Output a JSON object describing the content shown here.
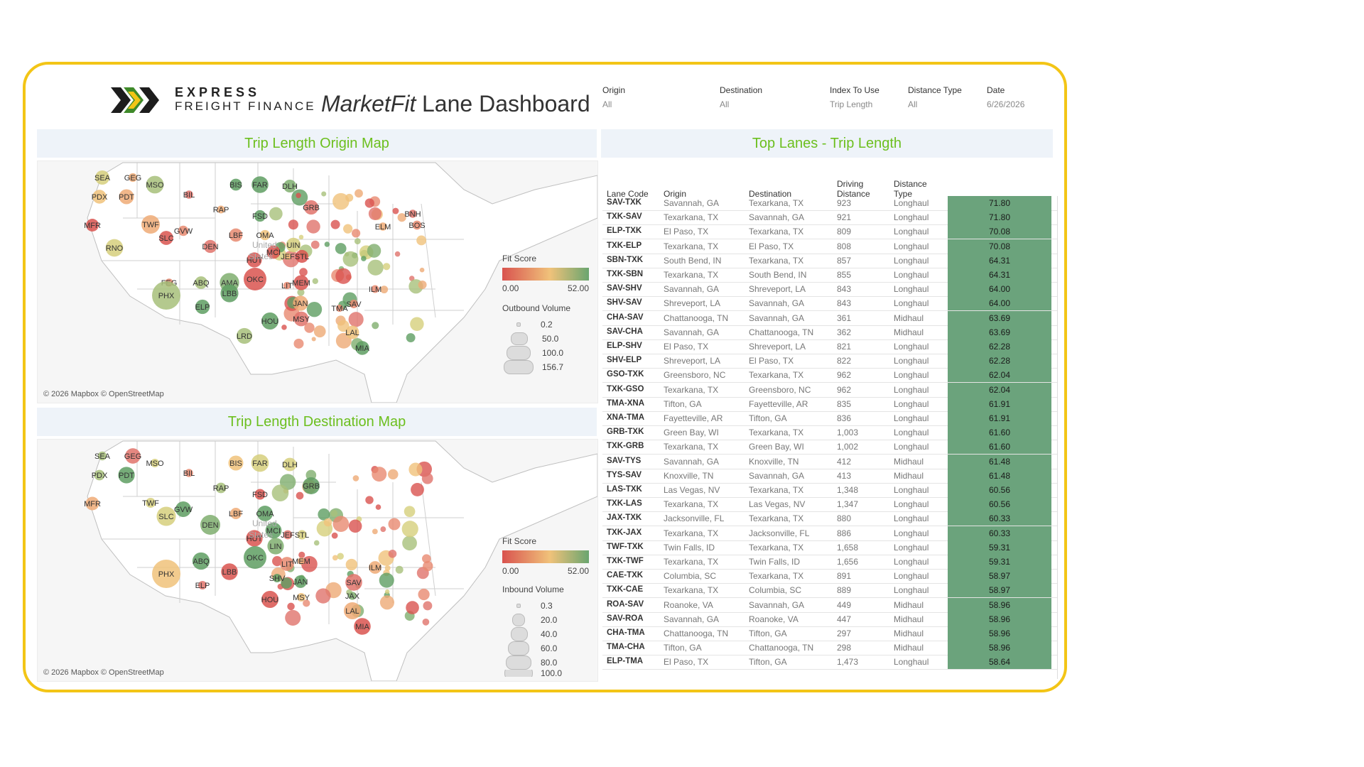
{
  "header": {
    "brand_line1": "EXPRESS",
    "brand_line2": "FREIGHT FINANCE",
    "title_italic": "MarketFit",
    "title_rest": "Lane Dashboard"
  },
  "filters": [
    {
      "label": "Origin",
      "value": "All"
    },
    {
      "label": "Destination",
      "value": "All"
    },
    {
      "label": "Index To Use",
      "value": "Trip Length"
    },
    {
      "label": "Distance Type",
      "value": "All"
    },
    {
      "label": "Date",
      "value": "6/26/2026"
    }
  ],
  "origin_map": {
    "title": "Trip Length Origin Map",
    "copyright": "© 2026 Mapbox © OpenStreetMap",
    "country_label_1": "United",
    "country_label_2": "States",
    "fit_legend": {
      "title": "Fit Score",
      "min": "0.00",
      "max": "52.00"
    },
    "volume_legend": {
      "title": "Outbound Volume",
      "values": [
        "0.2",
        "50.0",
        "100.0",
        "156.7"
      ]
    },
    "cities": [
      "SEA",
      "GEG",
      "MSO",
      "PDX",
      "PDT",
      "BIL",
      "BIS",
      "FAR",
      "DLH",
      "MFR",
      "TWF",
      "GVW",
      "RAP",
      "FSD",
      "RNO",
      "SLC",
      "DEN",
      "LBF",
      "OMA",
      "GRB",
      "UIN",
      "MCI",
      "JEF",
      "STL",
      "HUT",
      "FEG",
      "ABQ",
      "AMA",
      "OKC",
      "LBB",
      "PHX",
      "ELP",
      "LIT",
      "MEM",
      "JAN",
      "HOU",
      "MSY",
      "LRD",
      "TMA",
      "SAV",
      "ILM",
      "LAL",
      "MIA",
      "ELM",
      "BNH",
      "BOS"
    ]
  },
  "dest_map": {
    "title": "Trip Length Destination Map",
    "copyright": "© 2026 Mapbox © OpenStreetMap",
    "country_label_1": "United",
    "country_label_2": "States",
    "fit_legend": {
      "title": "Fit Score",
      "min": "0.00",
      "max": "52.00"
    },
    "volume_legend": {
      "title": "Inbound Volume",
      "values": [
        "0.3",
        "20.0",
        "40.0",
        "60.0",
        "80.0",
        "100.0"
      ]
    },
    "cities": [
      "SEA",
      "GEG",
      "MSO",
      "PDX",
      "PDT",
      "BIL",
      "BIS",
      "FAR",
      "DLH",
      "MFR",
      "TWF",
      "GVW",
      "RAP",
      "FSD",
      "SLC",
      "DEN",
      "LBF",
      "OMA",
      "GRB",
      "MCI",
      "JEF",
      "STL",
      "HUT",
      "LIN",
      "ABQ",
      "OKC",
      "LBB",
      "PHX",
      "ELP",
      "LIT",
      "MEM",
      "SHV",
      "JAN",
      "HOU",
      "MSY",
      "SAV",
      "JAX",
      "ILM",
      "LAL",
      "MIA"
    ]
  },
  "table": {
    "title": "Top Lanes - Trip Length",
    "headers": {
      "code": "Lane Code",
      "origin": "Origin",
      "destination": "Destination",
      "distance_1": "Driving",
      "distance_2": "Distance",
      "type_1": "Distance",
      "type_2": "Type"
    },
    "rows": [
      [
        "SAV-TXK",
        "Savannah, GA",
        "Texarkana, TX",
        "923",
        "Longhaul",
        "71.80"
      ],
      [
        "TXK-SAV",
        "Texarkana, TX",
        "Savannah, GA",
        "921",
        "Longhaul",
        "71.80"
      ],
      [
        "ELP-TXK",
        "El Paso, TX",
        "Texarkana, TX",
        "809",
        "Longhaul",
        "70.08"
      ],
      [
        "TXK-ELP",
        "Texarkana, TX",
        "El Paso, TX",
        "808",
        "Longhaul",
        "70.08"
      ],
      [
        "SBN-TXK",
        "South Bend, IN",
        "Texarkana, TX",
        "857",
        "Longhaul",
        "64.31"
      ],
      [
        "TXK-SBN",
        "Texarkana, TX",
        "South Bend, IN",
        "855",
        "Longhaul",
        "64.31"
      ],
      [
        "SAV-SHV",
        "Savannah, GA",
        "Shreveport, LA",
        "843",
        "Longhaul",
        "64.00"
      ],
      [
        "SHV-SAV",
        "Shreveport, LA",
        "Savannah, GA",
        "843",
        "Longhaul",
        "64.00"
      ],
      [
        "CHA-SAV",
        "Chattanooga, TN",
        "Savannah, GA",
        "361",
        "Midhaul",
        "63.69"
      ],
      [
        "SAV-CHA",
        "Savannah, GA",
        "Chattanooga, TN",
        "362",
        "Midhaul",
        "63.69"
      ],
      [
        "ELP-SHV",
        "El Paso, TX",
        "Shreveport, LA",
        "821",
        "Longhaul",
        "62.28"
      ],
      [
        "SHV-ELP",
        "Shreveport, LA",
        "El Paso, TX",
        "822",
        "Longhaul",
        "62.28"
      ],
      [
        "GSO-TXK",
        "Greensboro, NC",
        "Texarkana, TX",
        "962",
        "Longhaul",
        "62.04"
      ],
      [
        "TXK-GSO",
        "Texarkana, TX",
        "Greensboro, NC",
        "962",
        "Longhaul",
        "62.04"
      ],
      [
        "TMA-XNA",
        "Tifton, GA",
        "Fayetteville, AR",
        "835",
        "Longhaul",
        "61.91"
      ],
      [
        "XNA-TMA",
        "Fayetteville, AR",
        "Tifton, GA",
        "836",
        "Longhaul",
        "61.91"
      ],
      [
        "GRB-TXK",
        "Green Bay, WI",
        "Texarkana, TX",
        "1,003",
        "Longhaul",
        "61.60"
      ],
      [
        "TXK-GRB",
        "Texarkana, TX",
        "Green Bay, WI",
        "1,002",
        "Longhaul",
        "61.60"
      ],
      [
        "SAV-TYS",
        "Savannah, GA",
        "Knoxville, TN",
        "412",
        "Midhaul",
        "61.48"
      ],
      [
        "TYS-SAV",
        "Knoxville, TN",
        "Savannah, GA",
        "413",
        "Midhaul",
        "61.48"
      ],
      [
        "LAS-TXK",
        "Las Vegas, NV",
        "Texarkana, TX",
        "1,348",
        "Longhaul",
        "60.56"
      ],
      [
        "TXK-LAS",
        "Texarkana, TX",
        "Las Vegas, NV",
        "1,347",
        "Longhaul",
        "60.56"
      ],
      [
        "JAX-TXK",
        "Jacksonville, FL",
        "Texarkana, TX",
        "880",
        "Longhaul",
        "60.33"
      ],
      [
        "TXK-JAX",
        "Texarkana, TX",
        "Jacksonville, FL",
        "886",
        "Longhaul",
        "60.33"
      ],
      [
        "TWF-TXK",
        "Twin Falls, ID",
        "Texarkana, TX",
        "1,658",
        "Longhaul",
        "59.31"
      ],
      [
        "TXK-TWF",
        "Texarkana, TX",
        "Twin Falls, ID",
        "1,656",
        "Longhaul",
        "59.31"
      ],
      [
        "CAE-TXK",
        "Columbia, SC",
        "Texarkana, TX",
        "891",
        "Longhaul",
        "58.97"
      ],
      [
        "TXK-CAE",
        "Texarkana, TX",
        "Columbia, SC",
        "889",
        "Longhaul",
        "58.97"
      ],
      [
        "ROA-SAV",
        "Roanoke, VA",
        "Savannah, GA",
        "449",
        "Midhaul",
        "58.96"
      ],
      [
        "SAV-ROA",
        "Savannah, GA",
        "Roanoke, VA",
        "447",
        "Midhaul",
        "58.96"
      ],
      [
        "CHA-TMA",
        "Chattanooga, TN",
        "Tifton, GA",
        "297",
        "Midhaul",
        "58.96"
      ],
      [
        "TMA-CHA",
        "Tifton, GA",
        "Chattanooga, TN",
        "298",
        "Midhaul",
        "58.96"
      ],
      [
        "ELP-TMA",
        "El Paso, TX",
        "Tifton, GA",
        "1,473",
        "Longhaul",
        "58.64"
      ]
    ]
  },
  "colors": {
    "frame": "#f3c516",
    "title_green": "#6cbf1e",
    "score_fill": "#6ba37c",
    "panel_bg": "#eef3f9"
  }
}
